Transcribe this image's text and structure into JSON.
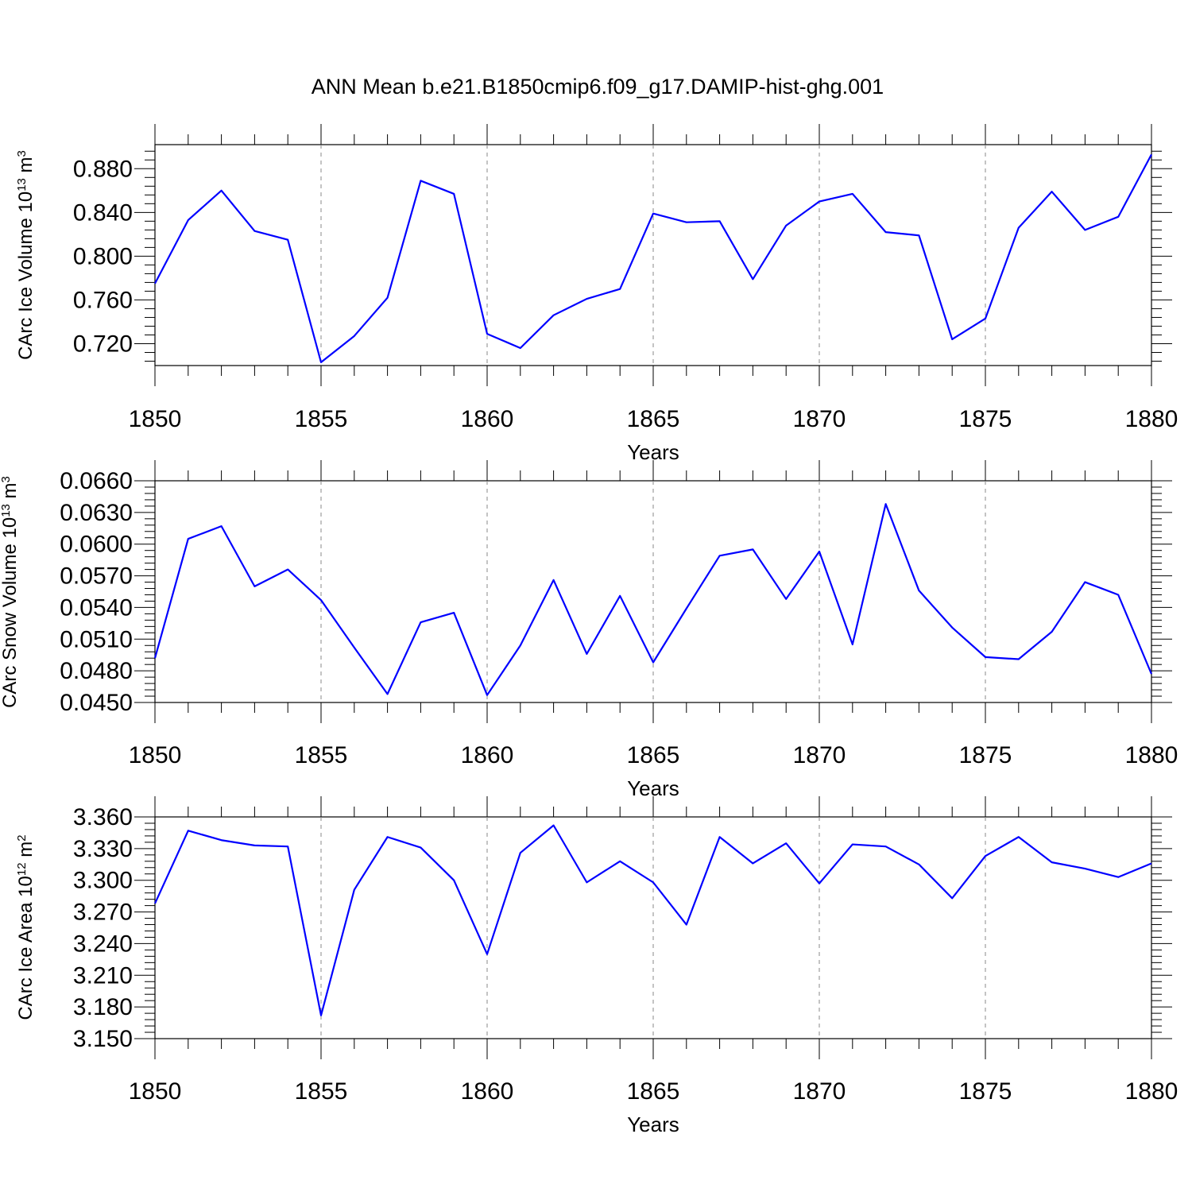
{
  "chart_data": [
    {
      "type": "line",
      "title": "ANN Mean b.e21.B1850cmip6.f09_g17.DAMIP-hist-ghg.001",
      "ylabel_main": "CArc Ice Volume 10",
      "ylabel_exp": "13",
      "ylabel_unit": " m",
      "ylabel_unit_exp": "3",
      "xlabel": "Years",
      "xlim": [
        1850,
        1880
      ],
      "ylim": [
        0.7,
        0.902
      ],
      "yticks": [
        "0.720",
        "0.760",
        "0.800",
        "0.840",
        "0.880"
      ],
      "xticks": [
        "1850",
        "1855",
        "1860",
        "1865",
        "1870",
        "1875",
        "1880"
      ],
      "x": [
        1850,
        1851,
        1852,
        1853,
        1854,
        1855,
        1856,
        1857,
        1858,
        1859,
        1860,
        1861,
        1862,
        1863,
        1864,
        1865,
        1866,
        1867,
        1868,
        1869,
        1870,
        1871,
        1872,
        1873,
        1874,
        1875,
        1876,
        1877,
        1878,
        1879,
        1880
      ],
      "values": [
        0.775,
        0.833,
        0.86,
        0.823,
        0.815,
        0.703,
        0.727,
        0.762,
        0.869,
        0.857,
        0.729,
        0.716,
        0.746,
        0.761,
        0.77,
        0.839,
        0.831,
        0.832,
        0.779,
        0.828,
        0.85,
        0.857,
        0.822,
        0.819,
        0.724,
        0.743,
        0.826,
        0.859,
        0.824,
        0.836,
        0.893
      ],
      "color": "#0000ff"
    },
    {
      "type": "line",
      "ylabel_main": "CArc Snow Volume 10",
      "ylabel_exp": "13",
      "ylabel_unit": " m",
      "ylabel_unit_exp": "3",
      "xlabel": "Years",
      "xlim": [
        1850,
        1880
      ],
      "ylim": [
        0.045,
        0.066
      ],
      "yticks": [
        "0.0450",
        "0.0480",
        "0.0510",
        "0.0540",
        "0.0570",
        "0.0600",
        "0.0630",
        "0.0660"
      ],
      "xticks": [
        "1850",
        "1855",
        "1860",
        "1865",
        "1870",
        "1875",
        "1880"
      ],
      "x": [
        1850,
        1851,
        1852,
        1853,
        1854,
        1855,
        1856,
        1857,
        1858,
        1859,
        1860,
        1861,
        1862,
        1863,
        1864,
        1865,
        1866,
        1867,
        1868,
        1869,
        1870,
        1871,
        1872,
        1873,
        1874,
        1875,
        1876,
        1877,
        1878,
        1879,
        1880
      ],
      "values": [
        0.0492,
        0.0605,
        0.0617,
        0.056,
        0.0576,
        0.0547,
        0.0502,
        0.0458,
        0.0526,
        0.0535,
        0.0457,
        0.0504,
        0.0566,
        0.0496,
        0.0551,
        0.0488,
        0.0539,
        0.0589,
        0.0595,
        0.0548,
        0.0593,
        0.0505,
        0.0638,
        0.0556,
        0.0521,
        0.0493,
        0.0491,
        0.0517,
        0.0564,
        0.0552,
        0.0477
      ],
      "color": "#0000ff"
    },
    {
      "type": "line",
      "ylabel_main": "CArc Ice Area 10",
      "ylabel_exp": "12",
      "ylabel_unit": " m",
      "ylabel_unit_exp": "2",
      "xlabel": "Years",
      "xlim": [
        1850,
        1880
      ],
      "ylim": [
        3.15,
        3.36
      ],
      "yticks": [
        "3.150",
        "3.180",
        "3.210",
        "3.240",
        "3.270",
        "3.300",
        "3.330",
        "3.360"
      ],
      "xticks": [
        "1850",
        "1855",
        "1860",
        "1865",
        "1870",
        "1875",
        "1880"
      ],
      "x": [
        1850,
        1851,
        1852,
        1853,
        1854,
        1855,
        1856,
        1857,
        1858,
        1859,
        1860,
        1861,
        1862,
        1863,
        1864,
        1865,
        1866,
        1867,
        1868,
        1869,
        1870,
        1871,
        1872,
        1873,
        1874,
        1875,
        1876,
        1877,
        1878,
        1879,
        1880
      ],
      "values": [
        3.278,
        3.347,
        3.338,
        3.333,
        3.332,
        3.172,
        3.291,
        3.341,
        3.331,
        3.3,
        3.23,
        3.326,
        3.352,
        3.298,
        3.318,
        3.298,
        3.258,
        3.341,
        3.316,
        3.335,
        3.297,
        3.334,
        3.332,
        3.315,
        3.283,
        3.323,
        3.341,
        3.317,
        3.311,
        3.303,
        3.316
      ],
      "color": "#0000ff"
    }
  ]
}
